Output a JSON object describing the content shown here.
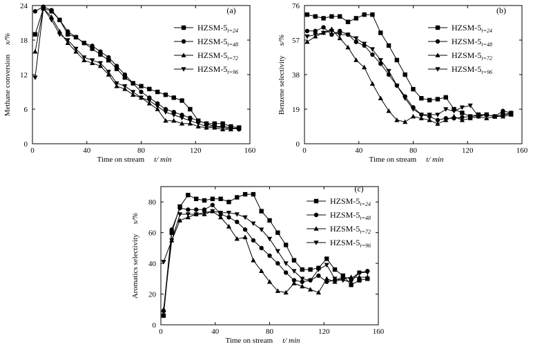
{
  "chart_data": [
    {
      "type": "line",
      "panel_label": "(a)",
      "ylabel": "Methane conversion",
      "ylabel_unit": "x/%",
      "xlabel": "Time on stream",
      "xlabel_unit": "t/ min",
      "xlim": [
        0,
        160
      ],
      "ylim": [
        0,
        24
      ],
      "xticks": [
        0,
        40,
        80,
        120,
        160
      ],
      "yticks": [
        0,
        6,
        12,
        18,
        24
      ],
      "series": [
        {
          "name": "HZSM-5",
          "sub": "t=24",
          "marker": "square",
          "x": [
            2,
            8,
            14,
            20,
            26,
            32,
            38,
            44,
            50,
            56,
            62,
            68,
            74,
            80,
            86,
            92,
            98,
            104,
            110,
            116,
            122,
            128,
            134,
            140,
            146,
            152
          ],
          "y": [
            19,
            23.5,
            23,
            21.5,
            19,
            18.5,
            17.5,
            16.5,
            15.5,
            14.5,
            13,
            11.5,
            10.5,
            10,
            9.5,
            9,
            8.5,
            8,
            7.5,
            6,
            4,
            3.5,
            3.5,
            3.5,
            3,
            2.8
          ]
        },
        {
          "name": "HZSM-5",
          "sub": "t=48",
          "marker": "circle",
          "x": [
            2,
            8,
            14,
            20,
            26,
            32,
            38,
            44,
            50,
            56,
            62,
            68,
            74,
            80,
            86,
            92,
            98,
            104,
            110,
            116,
            122,
            128,
            134,
            140,
            146,
            152
          ],
          "y": [
            23,
            23.8,
            23.2,
            21.5,
            19.5,
            18.5,
            17.5,
            17,
            16,
            15,
            13.5,
            12,
            10.5,
            9,
            8,
            7,
            6,
            5.5,
            5,
            4.5,
            4,
            3.5,
            3,
            3,
            2.8,
            2.5
          ]
        },
        {
          "name": "HZSM-5",
          "sub": "t=72",
          "marker": "triangle-up",
          "x": [
            2,
            8,
            14,
            20,
            26,
            32,
            38,
            44,
            50,
            56,
            62,
            68,
            74,
            80,
            86,
            92,
            98,
            104,
            110,
            116,
            122,
            128,
            134,
            140,
            146,
            152
          ],
          "y": [
            16,
            23.5,
            22,
            19.5,
            17.5,
            16,
            14.5,
            14,
            13.5,
            12,
            10,
            9.5,
            8.5,
            8,
            7,
            6,
            4,
            4,
            3.5,
            3.5,
            3,
            2.8,
            2.8,
            2.5,
            2.5,
            2.8
          ]
        },
        {
          "name": "HZSM-5",
          "sub": "t=96",
          "marker": "triangle-down",
          "x": [
            2,
            8,
            14,
            20,
            26,
            32,
            38,
            44,
            50,
            56,
            62,
            68,
            74,
            80,
            86,
            92,
            98,
            104,
            110,
            116,
            122,
            128,
            134,
            140,
            146,
            152
          ],
          "y": [
            11.5,
            23.5,
            21.5,
            19,
            18,
            16.5,
            15,
            14.5,
            14,
            12.5,
            10.5,
            10,
            9,
            8,
            7.5,
            6.5,
            5.5,
            5,
            4.5,
            4,
            3.5,
            3,
            3,
            2.8,
            2.6,
            2.8
          ]
        }
      ]
    },
    {
      "type": "line",
      "panel_label": "(b)",
      "ylabel": "Benzene selectivity",
      "ylabel_unit": "s/%",
      "xlabel": "Time on stream",
      "xlabel_unit": "t/ min",
      "xlim": [
        0,
        160
      ],
      "ylim": [
        0,
        76
      ],
      "xticks": [
        0,
        40,
        80,
        120,
        160
      ],
      "yticks": [
        0,
        19,
        38,
        57,
        76
      ],
      "series": [
        {
          "name": "HZSM-5",
          "sub": "t=24",
          "marker": "square",
          "x": [
            2,
            8,
            14,
            20,
            26,
            32,
            38,
            44,
            50,
            56,
            62,
            68,
            74,
            80,
            86,
            92,
            98,
            104,
            110,
            116,
            122,
            128,
            134,
            140,
            146,
            152
          ],
          "y": [
            71,
            70,
            69,
            70,
            70,
            67,
            69,
            71,
            71,
            61,
            54,
            46,
            38,
            30,
            25,
            24,
            24.5,
            25.5,
            19,
            17,
            15,
            16,
            16,
            15,
            16,
            16.5
          ]
        },
        {
          "name": "HZSM-5",
          "sub": "t=48",
          "marker": "circle",
          "x": [
            2,
            8,
            14,
            20,
            26,
            32,
            38,
            44,
            50,
            56,
            62,
            68,
            74,
            80,
            86,
            92,
            98,
            104,
            110,
            116,
            122,
            128,
            134,
            140,
            146,
            152
          ],
          "y": [
            62,
            62,
            64,
            60,
            62,
            60,
            56,
            54,
            49,
            44,
            38,
            32,
            26,
            20,
            16,
            15,
            13,
            14,
            14,
            14.5,
            15,
            15.5,
            16,
            15,
            18,
            17
          ]
        },
        {
          "name": "HZSM-5",
          "sub": "t=72",
          "marker": "triangle-up",
          "x": [
            2,
            8,
            14,
            20,
            26,
            32,
            38,
            44,
            50,
            56,
            62,
            68,
            74,
            80,
            86,
            92,
            98,
            104,
            110,
            116,
            122,
            128,
            134,
            140,
            146,
            152
          ],
          "y": [
            56,
            59,
            61,
            63,
            58,
            53,
            46,
            42,
            33,
            25,
            18,
            13,
            12,
            15,
            14,
            13,
            11,
            13,
            15,
            13,
            14,
            15,
            14,
            15,
            15,
            16
          ]
        },
        {
          "name": "HZSM-5",
          "sub": "t=96",
          "marker": "triangle-down",
          "x": [
            2,
            8,
            14,
            20,
            26,
            32,
            38,
            44,
            50,
            56,
            62,
            68,
            74,
            80,
            86,
            92,
            98,
            104,
            110,
            116,
            122,
            128,
            134,
            140,
            146,
            152
          ],
          "y": [
            59,
            60,
            61,
            62,
            60,
            60,
            58,
            55,
            52,
            46,
            40,
            32,
            25,
            19,
            16,
            16,
            16,
            19,
            18,
            20,
            21,
            15,
            16,
            15,
            16,
            17
          ]
        }
      ]
    },
    {
      "type": "line",
      "panel_label": "(c)",
      "ylabel": "Aromatics selectivity",
      "ylabel_unit": "s/%",
      "xlabel": "Time on stream",
      "xlabel_unit": "t/ min",
      "xlim": [
        0,
        160
      ],
      "ylim": [
        0,
        90
      ],
      "xticks": [
        0,
        40,
        80,
        120,
        160
      ],
      "yticks": [
        0,
        20,
        40,
        60,
        80
      ],
      "series": [
        {
          "name": "HZSM-5",
          "sub": "t=24",
          "marker": "square",
          "x": [
            2,
            8,
            14,
            20,
            26,
            32,
            38,
            44,
            50,
            56,
            62,
            68,
            74,
            80,
            86,
            92,
            98,
            104,
            110,
            116,
            122,
            128,
            134,
            140,
            146,
            152
          ],
          "y": [
            6,
            60,
            77,
            84.5,
            82,
            81,
            82,
            82,
            80,
            83,
            85,
            85,
            74,
            68,
            60,
            52,
            42,
            36,
            36,
            37,
            43,
            36,
            32,
            26,
            29,
            30
          ]
        },
        {
          "name": "HZSM-5",
          "sub": "t=48",
          "marker": "circle",
          "x": [
            2,
            8,
            14,
            20,
            26,
            32,
            38,
            44,
            50,
            56,
            62,
            68,
            74,
            80,
            86,
            92,
            98,
            104,
            110,
            116,
            122,
            128,
            134,
            140,
            146,
            152
          ],
          "y": [
            9,
            62,
            76,
            75,
            75,
            75,
            78,
            72,
            70,
            67,
            62,
            55,
            50,
            45,
            40,
            34,
            29,
            28,
            29,
            32,
            28,
            29,
            31,
            30,
            34,
            35
          ]
        },
        {
          "name": "HZSM-5",
          "sub": "t=72",
          "marker": "triangle-up",
          "x": [
            2,
            8,
            14,
            20,
            26,
            32,
            38,
            44,
            50,
            56,
            62,
            68,
            74,
            80,
            86,
            92,
            98,
            104,
            110,
            116,
            122,
            128,
            134,
            140,
            146,
            152
          ],
          "y": [
            10,
            55,
            68,
            70,
            72,
            72,
            74,
            70,
            64,
            56,
            57,
            42,
            35,
            28,
            22,
            21,
            27,
            25,
            23,
            21,
            30,
            28,
            30,
            31,
            31,
            31
          ]
        },
        {
          "name": "HZSM-5",
          "sub": "t=96",
          "marker": "triangle-down",
          "x": [
            2,
            8,
            14,
            20,
            26,
            32,
            38,
            44,
            50,
            56,
            62,
            68,
            74,
            80,
            86,
            92,
            98,
            104,
            110,
            116,
            122,
            128,
            134,
            140,
            146,
            152
          ],
          "y": [
            41,
            55,
            72,
            72,
            72,
            73,
            74,
            73,
            73,
            72,
            70,
            66,
            62,
            56,
            48,
            40,
            35,
            30,
            29,
            36,
            39,
            30,
            29,
            28,
            34,
            34
          ]
        }
      ]
    }
  ]
}
